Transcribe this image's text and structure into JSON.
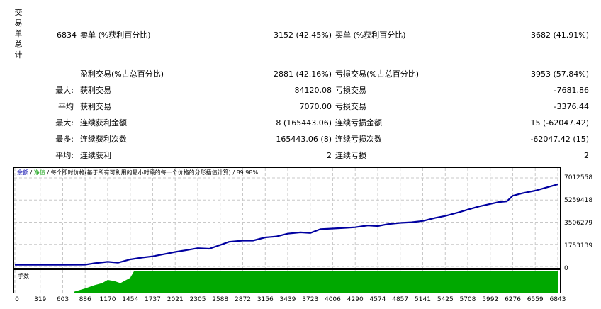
{
  "summary": {
    "vertical_title": [
      "交",
      "易",
      "单",
      "总",
      "计"
    ],
    "total_trades": "6834",
    "short_label": "卖单 (%获利百分比)",
    "short_value": "3152 (42.45%)",
    "long_label": "买单 (%获利百分比)",
    "long_value": "3682 (41.91%)"
  },
  "stats": [
    {
      "prefix": "",
      "left_label": "盈利交易(%占总百分比)",
      "left_value": "2881 (42.16%)",
      "right_label": "亏损交易(%占总百分比)",
      "right_value": "3953 (57.84%)"
    },
    {
      "prefix": "最大:",
      "left_label": "获利交易",
      "left_value": "84120.08",
      "right_label": "亏损交易",
      "right_value": "-7681.86"
    },
    {
      "prefix": "平均",
      "left_label": "获利交易",
      "left_value": "7070.00",
      "right_label": "亏损交易",
      "right_value": "-3376.44"
    },
    {
      "prefix": "最大:",
      "left_label": "连续获利金额",
      "left_value": "8 (165443.06)",
      "right_label": "连续亏损金额",
      "right_value": "15 (-62047.42)"
    },
    {
      "prefix": "最多:",
      "left_label": "连续获利次数",
      "left_value": "165443.06 (8)",
      "right_label": "连续亏损次数",
      "right_value": "-62047.42 (15)"
    },
    {
      "prefix": "平均:",
      "left_label": "连续获利",
      "left_value": "2",
      "right_label": "连续亏损",
      "right_value": "2"
    }
  ],
  "chart": {
    "legend_balance": "余额",
    "legend_sep1": " / ",
    "legend_equity": "净值",
    "legend_rest": " / 每个即时价格(基于所有可利用的最小时段的每一个价格的分形插值计算) / 89.98%",
    "volume_label": "手数",
    "colors": {
      "balance": "#0000a0",
      "equity": "#00a000",
      "volume": "#00a800",
      "grid": "#c8c8c8"
    }
  },
  "chart_data": {
    "type": "line",
    "title": "余额 / 净值 / 每个即时价格(基于所有可利用的最小时段的每一个价格的分形插值计算) / 89.98%",
    "xlabel": "",
    "ylabel": "",
    "y_ticks": [
      "7012558",
      "5259418",
      "3506279",
      "1753139",
      "0"
    ],
    "x_ticks": [
      "0",
      "319",
      "603",
      "886",
      "1170",
      "1454",
      "1737",
      "2021",
      "2305",
      "2588",
      "2872",
      "3156",
      "3439",
      "3723",
      "4006",
      "4290",
      "4574",
      "4857",
      "5141",
      "5425",
      "5708",
      "5992",
      "6276",
      "6559",
      "6843"
    ],
    "ylim": [
      0,
      7012558
    ],
    "xlim": [
      0,
      6843
    ],
    "grid": true,
    "series": [
      {
        "name": "余额",
        "x": [
          0,
          319,
          603,
          886,
          1000,
          1170,
          1300,
          1454,
          1600,
          1737,
          1900,
          2021,
          2150,
          2305,
          2450,
          2588,
          2700,
          2872,
          3000,
          3156,
          3300,
          3439,
          3600,
          3723,
          3850,
          4006,
          4150,
          4290,
          4450,
          4574,
          4700,
          4857,
          5000,
          5141,
          5300,
          5425,
          5600,
          5708,
          5850,
          5992,
          6100,
          6200,
          6276,
          6400,
          6559,
          6700,
          6843
        ],
        "values": [
          130000,
          130000,
          130000,
          140000,
          250000,
          370000,
          300000,
          560000,
          700000,
          800000,
          1000000,
          1150000,
          1280000,
          1450000,
          1400000,
          1700000,
          1950000,
          2050000,
          2050000,
          2300000,
          2380000,
          2600000,
          2700000,
          2650000,
          2950000,
          3000000,
          3050000,
          3100000,
          3250000,
          3200000,
          3350000,
          3450000,
          3500000,
          3600000,
          3850000,
          4000000,
          4300000,
          4500000,
          4750000,
          4950000,
          5100000,
          5150000,
          5600000,
          5800000,
          6000000,
          6250000,
          6500000
        ]
      },
      {
        "name": "手数",
        "x": [
          0,
          750,
          886,
          1000,
          1100,
          1170,
          1250,
          1330,
          1454,
          1500,
          6843
        ],
        "values": [
          0,
          0.05,
          0.2,
          0.35,
          0.45,
          0.6,
          0.55,
          0.45,
          0.7,
          1,
          1
        ]
      }
    ]
  }
}
